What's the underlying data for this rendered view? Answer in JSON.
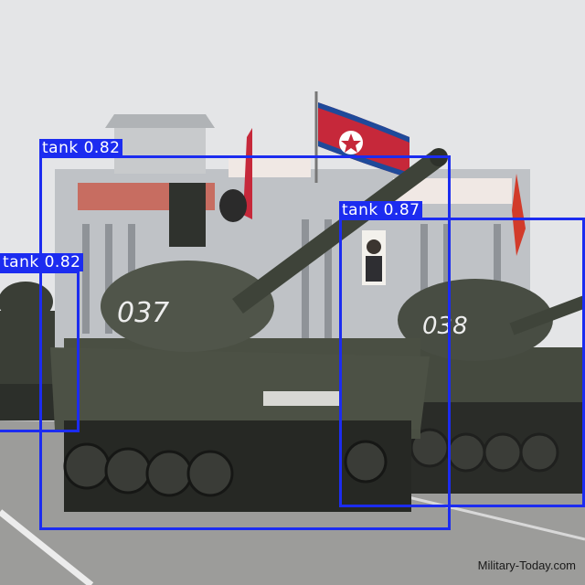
{
  "detections": [
    {
      "label": "tank",
      "score": "0.82"
    },
    {
      "label": "tank",
      "score": "0.87"
    },
    {
      "label": "tank",
      "score": "0.82"
    }
  ],
  "tank_numbers": [
    "037",
    "038"
  ],
  "watermark": "Military-Today.com",
  "colors": {
    "box": "#1c2cf0",
    "tank": "#3b3f34",
    "sky": "#e6e7e9",
    "road": "#9a9a98"
  }
}
